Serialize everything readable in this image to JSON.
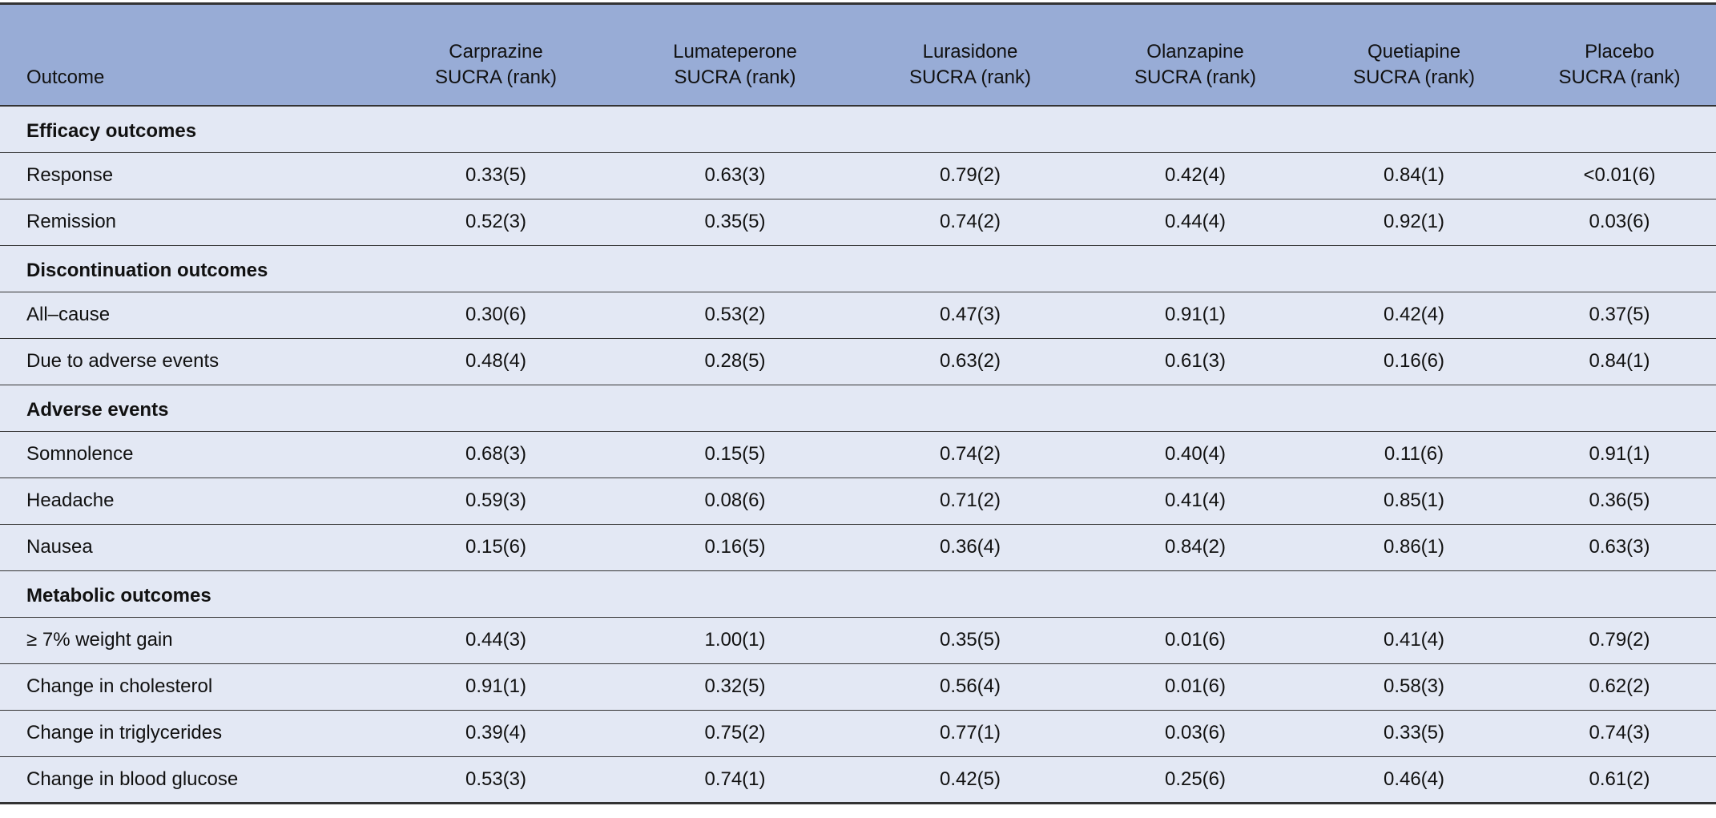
{
  "table": {
    "headers": [
      {
        "line1": "",
        "line2": "Outcome"
      },
      {
        "line1": "Carprazine",
        "line2": "SUCRA (rank)"
      },
      {
        "line1": "Lumateperone",
        "line2": "SUCRA (rank)"
      },
      {
        "line1": "Lurasidone",
        "line2": "SUCRA (rank)"
      },
      {
        "line1": "Olanzapine",
        "line2": "SUCRA (rank)"
      },
      {
        "line1": "Quetiapine",
        "line2": "SUCRA (rank)"
      },
      {
        "line1": "Placebo",
        "line2": "SUCRA (rank)"
      }
    ],
    "sections": [
      {
        "title": "Efficacy outcomes",
        "rows": [
          {
            "label": "Response",
            "values": [
              "0.33(5)",
              "0.63(3)",
              "0.79(2)",
              "0.42(4)",
              "0.84(1)",
              "<0.01(6)"
            ]
          },
          {
            "label": "Remission",
            "values": [
              "0.52(3)",
              "0.35(5)",
              "0.74(2)",
              "0.44(4)",
              "0.92(1)",
              "0.03(6)"
            ]
          }
        ]
      },
      {
        "title": "Discontinuation outcomes",
        "rows": [
          {
            "label": "All–cause",
            "values": [
              "0.30(6)",
              "0.53(2)",
              "0.47(3)",
              "0.91(1)",
              "0.42(4)",
              "0.37(5)"
            ]
          },
          {
            "label": "Due to adverse events",
            "values": [
              "0.48(4)",
              "0.28(5)",
              "0.63(2)",
              "0.61(3)",
              "0.16(6)",
              "0.84(1)"
            ]
          }
        ]
      },
      {
        "title": "Adverse events",
        "rows": [
          {
            "label": "Somnolence",
            "values": [
              "0.68(3)",
              "0.15(5)",
              "0.74(2)",
              "0.40(4)",
              "0.11(6)",
              "0.91(1)"
            ]
          },
          {
            "label": "Headache",
            "values": [
              "0.59(3)",
              "0.08(6)",
              "0.71(2)",
              "0.41(4)",
              "0.85(1)",
              "0.36(5)"
            ]
          },
          {
            "label": "Nausea",
            "values": [
              "0.15(6)",
              "0.16(5)",
              "0.36(4)",
              "0.84(2)",
              "0.86(1)",
              "0.63(3)"
            ]
          }
        ]
      },
      {
        "title": "Metabolic outcomes",
        "rows": [
          {
            "label": "≥ 7% weight gain",
            "values": [
              "0.44(3)",
              "1.00(1)",
              "0.35(5)",
              "0.01(6)",
              "0.41(4)",
              "0.79(2)"
            ]
          },
          {
            "label": "Change in cholesterol",
            "values": [
              "0.91(1)",
              "0.32(5)",
              "0.56(4)",
              "0.01(6)",
              "0.58(3)",
              "0.62(2)"
            ]
          },
          {
            "label": "Change in triglycerides",
            "values": [
              "0.39(4)",
              "0.75(2)",
              "0.77(1)",
              "0.03(6)",
              "0.33(5)",
              "0.74(3)"
            ]
          },
          {
            "label": "Change in blood glucose",
            "values": [
              "0.53(3)",
              "0.74(1)",
              "0.42(5)",
              "0.25(6)",
              "0.46(4)",
              "0.61(2)"
            ]
          }
        ]
      }
    ],
    "colors": {
      "header_bg": "#98acd6",
      "body_bg": "#e3e8f4",
      "rule": "#333333"
    }
  }
}
